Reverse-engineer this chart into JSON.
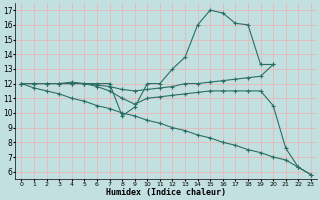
{
  "xlabel": "Humidex (Indice chaleur)",
  "bg_color": "#c2e0e0",
  "grid_color": "#e8b8b8",
  "line_color": "#2a6e65",
  "xlim": [
    -0.5,
    23.5
  ],
  "ylim": [
    5.5,
    17.5
  ],
  "xticks": [
    0,
    1,
    2,
    3,
    4,
    5,
    6,
    7,
    8,
    9,
    10,
    11,
    12,
    13,
    14,
    15,
    16,
    17,
    18,
    19,
    20,
    21,
    22,
    23
  ],
  "yticks": [
    6,
    7,
    8,
    9,
    10,
    11,
    12,
    13,
    14,
    15,
    16,
    17
  ],
  "series": [
    {
      "x": [
        0,
        1,
        2,
        3,
        4,
        5,
        6,
        7,
        8,
        9,
        10,
        11,
        12,
        13,
        14,
        15,
        16,
        17,
        18,
        19,
        20
      ],
      "y": [
        12,
        12,
        12,
        12,
        12,
        12,
        12,
        12,
        9.8,
        10.4,
        12,
        12,
        13,
        13.8,
        16,
        17.0,
        16.8,
        16.1,
        16.0,
        13.3,
        13.3
      ]
    },
    {
      "x": [
        0,
        1,
        2,
        3,
        4,
        5,
        6,
        7,
        8,
        9,
        10,
        11,
        12,
        13,
        14,
        15,
        16,
        17,
        18,
        19,
        20
      ],
      "y": [
        12,
        12,
        12,
        12,
        12,
        12,
        11.9,
        11.8,
        11.6,
        11.5,
        11.6,
        11.7,
        11.8,
        12,
        12,
        12.1,
        12.2,
        12.3,
        12.4,
        12.5,
        13.3
      ]
    },
    {
      "x": [
        0,
        1,
        2,
        3,
        4,
        5,
        6,
        7,
        8,
        9,
        10,
        11,
        12,
        13,
        14,
        15,
        16,
        17,
        18,
        19,
        20,
        21,
        22,
        23
      ],
      "y": [
        12,
        11.7,
        11.5,
        11.3,
        11.0,
        10.8,
        10.5,
        10.3,
        10.0,
        9.8,
        9.5,
        9.3,
        9.0,
        8.8,
        8.5,
        8.3,
        8.0,
        7.8,
        7.5,
        7.3,
        7.0,
        6.8,
        6.3,
        5.8
      ]
    },
    {
      "x": [
        0,
        1,
        2,
        3,
        4,
        5,
        6,
        7,
        8,
        9,
        10,
        11,
        12,
        13,
        14,
        15,
        16,
        17,
        18,
        19,
        20,
        21,
        22,
        23
      ],
      "y": [
        12,
        12,
        12,
        12,
        12.1,
        12,
        11.8,
        11.5,
        11.0,
        10.6,
        11.0,
        11.1,
        11.2,
        11.3,
        11.4,
        11.5,
        11.5,
        11.5,
        11.5,
        11.5,
        10.5,
        7.6,
        6.3,
        5.8
      ]
    }
  ]
}
